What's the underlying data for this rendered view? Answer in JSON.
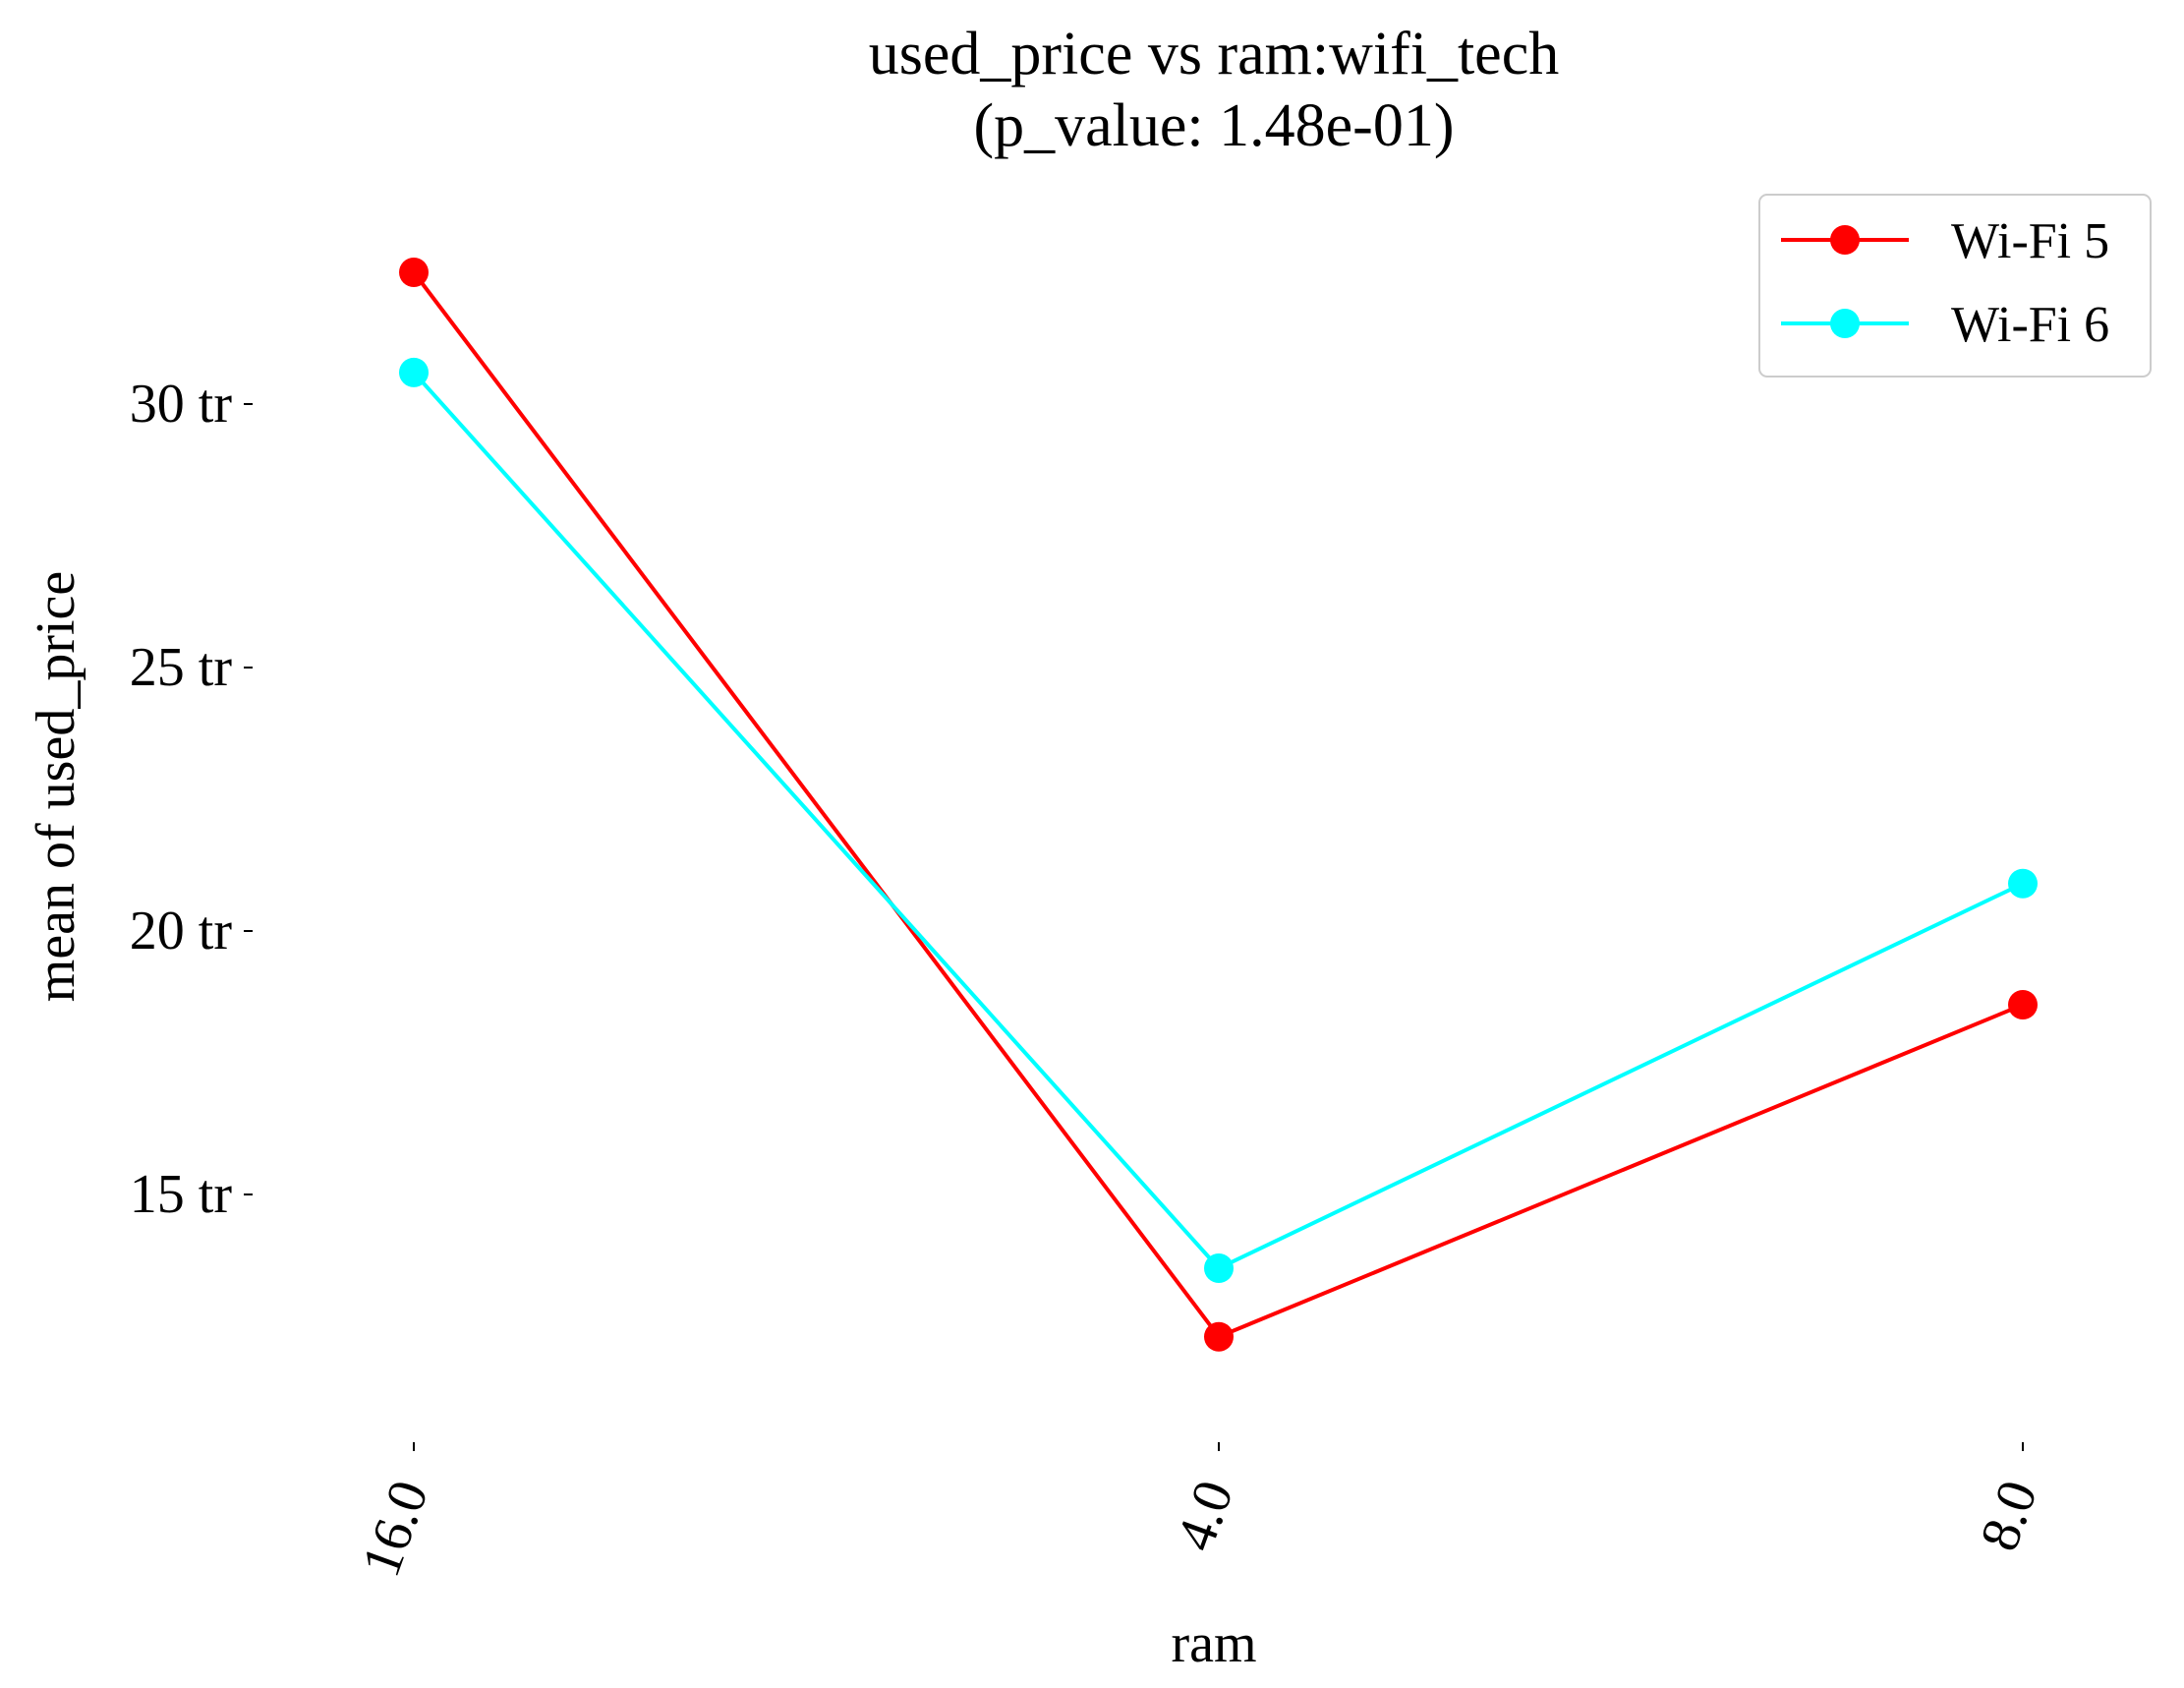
{
  "chart_data": {
    "type": "line",
    "title": "used_price vs ram:wifi_tech",
    "subtitle": "(p_value: 1.48e-01)",
    "xlabel": "ram",
    "ylabel": "mean of used_price",
    "categories": [
      "16.0",
      "4.0",
      "8.0"
    ],
    "y_ticks": [
      15,
      20,
      25,
      30
    ],
    "y_tick_labels": [
      "15 tr",
      "20 tr",
      "25 tr",
      "30 tr"
    ],
    "ylim": [
      10.5,
      35
    ],
    "grid": false,
    "legend_position": "top-right",
    "series": [
      {
        "name": "Wi-Fi 5",
        "color": "#ff0000",
        "values": [
          32.5,
          12.3,
          18.6
        ]
      },
      {
        "name": "Wi-Fi 6",
        "color": "#00ffff",
        "values": [
          30.6,
          13.6,
          20.9
        ]
      }
    ]
  }
}
